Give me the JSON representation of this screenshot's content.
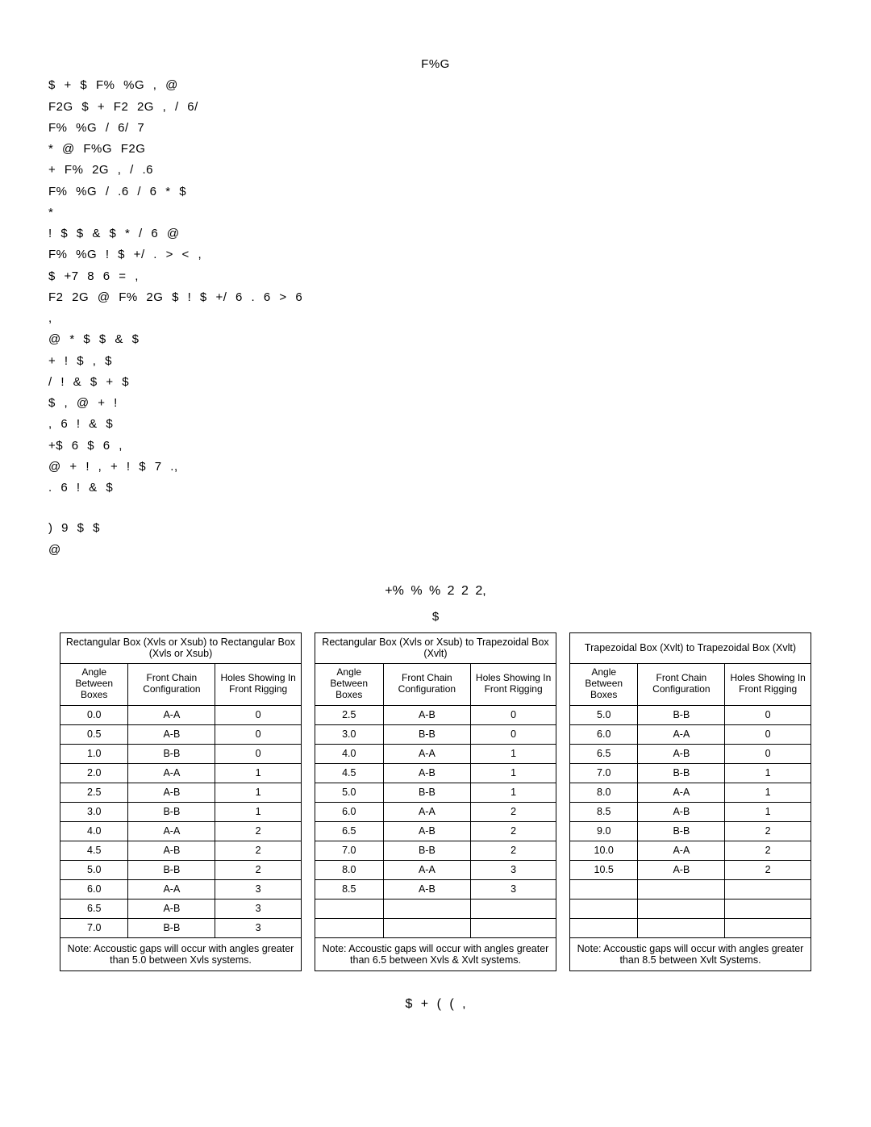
{
  "body": {
    "p1": "F%G",
    "p2": "$ + $ F% %G , @",
    "p3": "F2G $ + F2 2G , / 6/",
    "p4": "F% %G / 6/ 7",
    "p5": "* @ F%G F2G",
    "p6": "+ F% 2G , / .6",
    "p7": "F% %G / .6 / 6 * $",
    "p8": "*",
    "p9": "! $ $ & $ * / 6 @",
    "p10": "F% %G ! $ +/ . > < ,",
    "p11": "$ +7 8 6 = ,",
    "p12": "F2 2G @ F% 2G $ ! $ +/ 6 . 6 > 6",
    "p13": ",",
    "p14": "@ * $ $ & $",
    "p15": "+ ! $ , $",
    "p16": "/ ! & $ + $",
    "p17": "$ , @ + !",
    "p18": ", 6 ! & $",
    "p19": "+$ 6 $ 6 ,",
    "p20": "@ + ! , + ! $ 7 .,",
    "p21": ". 6 ! & $",
    "p22": ") 9 $ $",
    "p23": "@"
  },
  "tables_title": "+% % % 2 2 2,",
  "tables_subtitle": "$",
  "cols": {
    "angle": "Angle Between Boxes",
    "chain": "Front Chain Configuration",
    "holes": "Holes Showing In Front Rigging"
  },
  "tables": [
    {
      "header": "Rectangular Box (Xvls or Xsub) to Rectangular Box (Xvls or Xsub)",
      "note": "Note: Accoustic gaps will occur with angles greater than 5.0  between Xvls systems.",
      "rows": [
        [
          "0.0",
          "A-A",
          "0"
        ],
        [
          "0.5",
          "A-B",
          "0"
        ],
        [
          "1.0",
          "B-B",
          "0"
        ],
        [
          "2.0",
          "A-A",
          "1"
        ],
        [
          "2.5",
          "A-B",
          "1"
        ],
        [
          "3.0",
          "B-B",
          "1"
        ],
        [
          "4.0",
          "A-A",
          "2"
        ],
        [
          "4.5",
          "A-B",
          "2"
        ],
        [
          "5.0",
          "B-B",
          "2"
        ],
        [
          "6.0",
          "A-A",
          "3"
        ],
        [
          "6.5",
          "A-B",
          "3"
        ],
        [
          "7.0",
          "B-B",
          "3"
        ]
      ]
    },
    {
      "header": "Rectangular Box (Xvls or Xsub) to Trapezoidal Box (Xvlt)",
      "note": "Note: Accoustic gaps will occur with angles greater than 6.5  between Xvls & Xvlt systems.",
      "rows": [
        [
          "2.5",
          "A-B",
          "0"
        ],
        [
          "3.0",
          "B-B",
          "0"
        ],
        [
          "4.0",
          "A-A",
          "1"
        ],
        [
          "4.5",
          "A-B",
          "1"
        ],
        [
          "5.0",
          "B-B",
          "1"
        ],
        [
          "6.0",
          "A-A",
          "2"
        ],
        [
          "6.5",
          "A-B",
          "2"
        ],
        [
          "7.0",
          "B-B",
          "2"
        ],
        [
          "8.0",
          "A-A",
          "3"
        ],
        [
          "8.5",
          "A-B",
          "3"
        ],
        [
          "",
          "",
          ""
        ],
        [
          "",
          "",
          ""
        ]
      ]
    },
    {
      "header": "Trapezoidal Box (Xvlt) to Trapezoidal Box (Xvlt)",
      "note": "Note: Accoustic gaps will occur with angles greater than 8.5  between Xvlt Systems.",
      "rows": [
        [
          "5.0",
          "B-B",
          "0"
        ],
        [
          "6.0",
          "A-A",
          "0"
        ],
        [
          "6.5",
          "A-B",
          "0"
        ],
        [
          "7.0",
          "B-B",
          "1"
        ],
        [
          "8.0",
          "A-A",
          "1"
        ],
        [
          "8.5",
          "A-B",
          "1"
        ],
        [
          "9.0",
          "B-B",
          "2"
        ],
        [
          "10.0",
          "A-A",
          "2"
        ],
        [
          "10.5",
          "A-B",
          "2"
        ],
        [
          "",
          "",
          ""
        ],
        [
          "",
          "",
          ""
        ],
        [
          "",
          "",
          ""
        ]
      ]
    }
  ],
  "footer": "$ + ( ( ,"
}
